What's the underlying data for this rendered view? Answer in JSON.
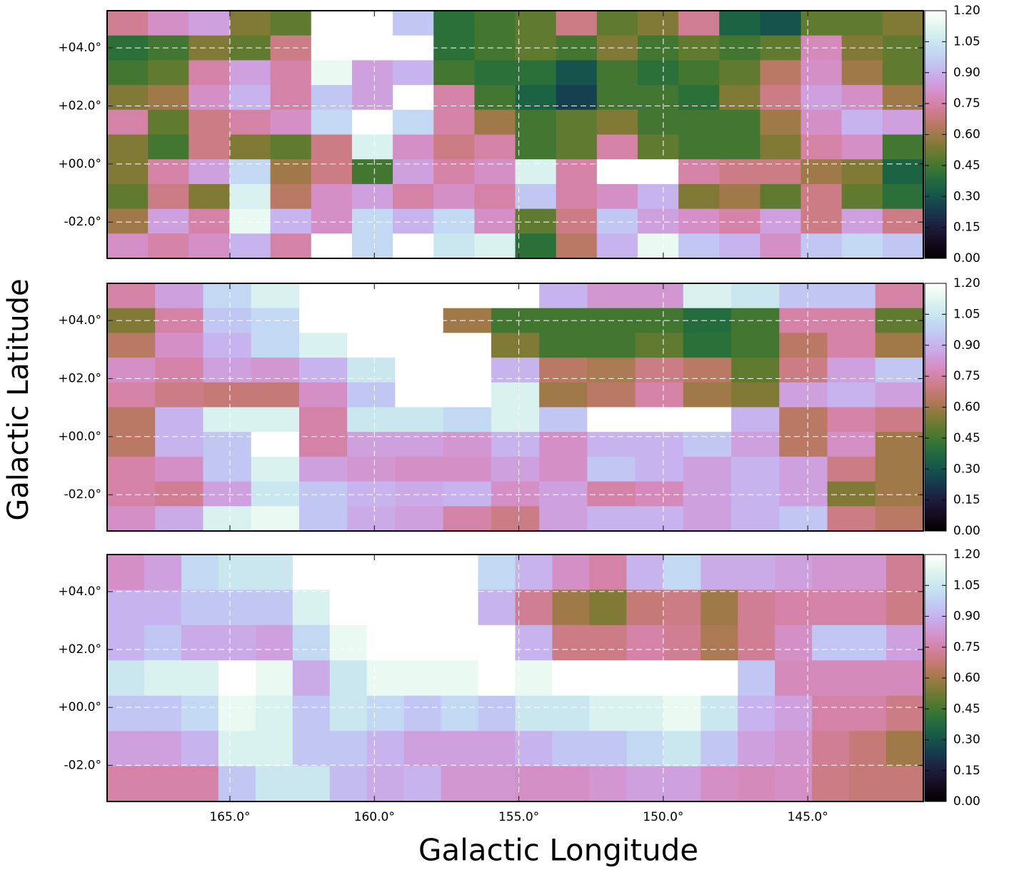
{
  "chart_data": [
    {
      "type": "heatmap",
      "colormap": "cubehelix",
      "grid": true,
      "xlim": [
        169.25,
        141.0
      ],
      "ylim": [
        -3.25,
        5.28
      ],
      "xticks": [
        165,
        160,
        155,
        150,
        145
      ],
      "yticks": [
        {
          "value": 4,
          "label": "+04.0°"
        },
        {
          "value": 2,
          "label": "+02.0°"
        },
        {
          "value": 0,
          "label": "+00.0°"
        },
        {
          "value": -2,
          "label": "-02.0°"
        }
      ],
      "clim": [
        0,
        1.2
      ],
      "cticks": [
        {
          "value": 0,
          "label": "0.00"
        },
        {
          "value": 0.15,
          "label": "0.15"
        },
        {
          "value": 0.3,
          "label": "0.30"
        },
        {
          "value": 0.45,
          "label": "0.45"
        },
        {
          "value": 0.6,
          "label": "0.60"
        },
        {
          "value": 0.75,
          "label": "0.75"
        },
        {
          "value": 0.9,
          "label": "0.90"
        },
        {
          "value": 1.05,
          "label": "1.05"
        },
        {
          "value": 1.2,
          "label": "1.20"
        }
      ],
      "values": [
        [
          0.72,
          0.8,
          0.85,
          0.55,
          0.5,
          1.2,
          1.2,
          0.95,
          0.4,
          0.45,
          0.5,
          0.7,
          0.5,
          0.55,
          0.72,
          0.35,
          0.3,
          0.5,
          0.5,
          0.55
        ],
        [
          0.4,
          0.45,
          0.55,
          0.5,
          0.7,
          1.2,
          1.2,
          1.2,
          0.4,
          0.45,
          0.5,
          0.45,
          0.55,
          0.45,
          0.5,
          0.45,
          0.5,
          0.78,
          0.55,
          0.5
        ],
        [
          0.45,
          0.5,
          0.75,
          0.85,
          0.75,
          1.15,
          0.85,
          0.9,
          0.45,
          0.4,
          0.4,
          0.3,
          0.45,
          0.4,
          0.45,
          0.5,
          0.65,
          0.8,
          0.6,
          0.5
        ],
        [
          0.55,
          0.6,
          0.8,
          0.9,
          0.75,
          0.95,
          0.85,
          1.2,
          0.75,
          0.45,
          0.35,
          0.25,
          0.45,
          0.45,
          0.4,
          0.55,
          0.7,
          0.85,
          0.8,
          0.6
        ],
        [
          0.75,
          0.5,
          0.7,
          0.75,
          0.8,
          1.0,
          1.2,
          1.0,
          0.75,
          0.6,
          0.45,
          0.5,
          0.55,
          0.45,
          0.45,
          0.45,
          0.6,
          0.8,
          0.9,
          0.85
        ],
        [
          0.55,
          0.45,
          0.7,
          0.55,
          0.5,
          0.7,
          1.1,
          0.8,
          0.7,
          0.75,
          0.45,
          0.5,
          0.75,
          0.5,
          0.45,
          0.45,
          0.55,
          0.75,
          0.8,
          0.45
        ],
        [
          0.55,
          0.75,
          0.85,
          1.0,
          0.6,
          0.7,
          0.45,
          0.85,
          0.75,
          0.8,
          1.1,
          0.75,
          1.2,
          1.2,
          0.75,
          0.7,
          0.7,
          0.6,
          0.55,
          0.35
        ],
        [
          0.5,
          0.7,
          0.55,
          1.1,
          0.65,
          0.8,
          0.85,
          0.75,
          0.8,
          0.75,
          0.95,
          0.75,
          0.8,
          0.9,
          0.55,
          0.6,
          0.5,
          0.7,
          0.5,
          0.4
        ],
        [
          0.6,
          0.85,
          0.75,
          1.15,
          0.9,
          0.8,
          1.0,
          0.9,
          1.0,
          0.8,
          0.5,
          0.7,
          0.95,
          0.85,
          0.8,
          0.75,
          0.85,
          0.7,
          0.85,
          0.7
        ],
        [
          0.8,
          0.75,
          0.8,
          0.9,
          0.75,
          1.2,
          1.0,
          1.2,
          1.05,
          1.1,
          0.4,
          0.65,
          0.9,
          1.15,
          0.95,
          0.9,
          0.8,
          0.95,
          1.0,
          0.95
        ]
      ]
    },
    {
      "type": "heatmap",
      "colormap": "cubehelix",
      "grid": true,
      "ylabel": "Galactic Latitude",
      "xlim": [
        169.25,
        141.0
      ],
      "ylim": [
        -3.25,
        5.28
      ],
      "xticks": [
        165,
        160,
        155,
        150,
        145
      ],
      "yticks": [
        {
          "value": 4,
          "label": "+04.0°"
        },
        {
          "value": 2,
          "label": "+02.0°"
        },
        {
          "value": 0,
          "label": "+00.0°"
        },
        {
          "value": -2,
          "label": "-02.0°"
        }
      ],
      "clim": [
        0,
        1.2
      ],
      "cticks": [
        {
          "value": 0,
          "label": "0.00"
        },
        {
          "value": 0.15,
          "label": "0.15"
        },
        {
          "value": 0.3,
          "label": "0.30"
        },
        {
          "value": 0.45,
          "label": "0.45"
        },
        {
          "value": 0.6,
          "label": "0.60"
        },
        {
          "value": 0.75,
          "label": "0.75"
        },
        {
          "value": 0.9,
          "label": "0.90"
        },
        {
          "value": 1.05,
          "label": "1.05"
        },
        {
          "value": 1.2,
          "label": "1.20"
        }
      ],
      "values": [
        [
          0.75,
          0.85,
          1.0,
          1.1,
          1.2,
          1.2,
          1.2,
          1.2,
          1.2,
          0.9,
          0.82,
          0.82,
          1.1,
          1.05,
          0.95,
          0.95,
          0.75
        ],
        [
          0.55,
          0.75,
          0.95,
          1.0,
          1.2,
          1.2,
          1.2,
          0.6,
          0.45,
          0.45,
          0.45,
          0.45,
          0.38,
          0.45,
          0.75,
          0.75,
          0.5
        ],
        [
          0.65,
          0.8,
          0.9,
          1.0,
          1.1,
          1.2,
          1.2,
          1.2,
          0.55,
          0.45,
          0.45,
          0.5,
          0.4,
          0.45,
          0.65,
          0.75,
          0.6
        ],
        [
          0.8,
          0.75,
          0.85,
          0.82,
          0.9,
          1.05,
          1.2,
          1.2,
          0.9,
          0.65,
          0.62,
          0.7,
          0.65,
          0.5,
          0.7,
          0.85,
          0.95
        ],
        [
          0.75,
          0.7,
          0.68,
          0.68,
          0.8,
          0.95,
          1.2,
          1.2,
          1.1,
          0.6,
          0.65,
          0.75,
          0.6,
          0.55,
          0.85,
          0.9,
          0.85
        ],
        [
          0.65,
          0.9,
          1.1,
          1.1,
          0.75,
          1.05,
          1.05,
          1.0,
          1.1,
          0.95,
          1.2,
          1.2,
          1.2,
          0.9,
          0.65,
          0.75,
          0.7
        ],
        [
          0.65,
          0.9,
          0.95,
          1.2,
          0.75,
          0.85,
          0.85,
          0.82,
          0.9,
          0.8,
          0.9,
          0.9,
          0.95,
          0.85,
          0.65,
          0.8,
          0.6
        ],
        [
          0.75,
          0.8,
          0.95,
          1.1,
          0.85,
          0.82,
          0.8,
          0.8,
          0.85,
          0.8,
          0.95,
          0.9,
          0.85,
          0.9,
          0.85,
          0.7,
          0.6
        ],
        [
          0.75,
          0.72,
          0.85,
          1.05,
          0.95,
          0.9,
          0.88,
          0.9,
          0.8,
          0.85,
          0.75,
          0.78,
          0.85,
          0.9,
          0.85,
          0.55,
          0.6
        ],
        [
          0.8,
          0.88,
          1.1,
          1.15,
          0.95,
          0.88,
          0.85,
          0.75,
          0.7,
          0.85,
          0.9,
          0.9,
          0.85,
          0.9,
          0.95,
          0.7,
          0.65
        ]
      ]
    },
    {
      "type": "heatmap",
      "colormap": "cubehelix",
      "grid": true,
      "xlabel": "Galactic Longitude",
      "xlim": [
        169.25,
        141.0
      ],
      "ylim": [
        -3.25,
        5.28
      ],
      "xticks": [
        {
          "value": 165,
          "label": "165.0°"
        },
        {
          "value": 160,
          "label": "160.0°"
        },
        {
          "value": 155,
          "label": "155.0°"
        },
        {
          "value": 150,
          "label": "150.0°"
        },
        {
          "value": 145,
          "label": "145.0°"
        }
      ],
      "yticks": [
        {
          "value": 4,
          "label": "+04.0°"
        },
        {
          "value": 2,
          "label": "+02.0°"
        },
        {
          "value": 0,
          "label": "+00.0°"
        },
        {
          "value": -2,
          "label": "-02.0°"
        }
      ],
      "clim": [
        0,
        1.2
      ],
      "cticks": [
        {
          "value": 0,
          "label": "0.00"
        },
        {
          "value": 0.15,
          "label": "0.15"
        },
        {
          "value": 0.3,
          "label": "0.30"
        },
        {
          "value": 0.45,
          "label": "0.45"
        },
        {
          "value": 0.6,
          "label": "0.60"
        },
        {
          "value": 0.75,
          "label": "0.75"
        },
        {
          "value": 0.9,
          "label": "0.90"
        },
        {
          "value": 1.05,
          "label": "1.05"
        },
        {
          "value": 1.2,
          "label": "1.20"
        }
      ],
      "values": [
        [
          0.8,
          0.85,
          1.0,
          1.05,
          1.05,
          1.2,
          1.2,
          1.2,
          1.2,
          1.2,
          1.0,
          0.9,
          0.8,
          0.75,
          0.9,
          1.0,
          0.88,
          0.88,
          0.85,
          0.82,
          0.82,
          0.72
        ],
        [
          0.9,
          0.9,
          0.95,
          0.95,
          0.95,
          1.1,
          1.2,
          1.2,
          1.2,
          1.2,
          0.9,
          0.72,
          0.6,
          0.55,
          0.68,
          0.7,
          0.6,
          0.72,
          0.75,
          0.75,
          0.75,
          0.7
        ],
        [
          0.9,
          0.95,
          0.88,
          0.88,
          0.85,
          1.0,
          1.15,
          1.2,
          1.2,
          1.2,
          1.2,
          0.9,
          0.7,
          0.7,
          0.75,
          0.72,
          0.62,
          0.72,
          0.8,
          0.95,
          0.95,
          0.85
        ],
        [
          1.05,
          1.1,
          1.1,
          1.2,
          1.15,
          0.88,
          1.05,
          1.15,
          1.15,
          1.15,
          1.2,
          1.15,
          1.2,
          1.2,
          1.2,
          1.2,
          1.2,
          0.95,
          0.78,
          0.78,
          0.78,
          0.78
        ],
        [
          0.95,
          0.95,
          1.0,
          1.15,
          1.1,
          0.95,
          1.05,
          1.0,
          0.95,
          1.0,
          0.95,
          1.05,
          1.05,
          1.1,
          1.1,
          1.15,
          1.05,
          0.9,
          0.85,
          0.75,
          0.75,
          0.7
        ],
        [
          0.85,
          0.85,
          0.9,
          1.1,
          1.1,
          0.95,
          0.95,
          0.9,
          0.85,
          0.85,
          0.85,
          0.9,
          0.95,
          0.95,
          1.0,
          1.05,
          0.95,
          0.85,
          0.82,
          0.72,
          0.68,
          0.6
        ],
        [
          0.75,
          0.75,
          0.75,
          0.95,
          1.05,
          1.05,
          0.92,
          0.88,
          0.9,
          0.82,
          0.82,
          0.8,
          0.8,
          0.82,
          0.85,
          0.85,
          0.8,
          0.78,
          0.8,
          0.7,
          0.68,
          0.68
        ]
      ]
    }
  ]
}
